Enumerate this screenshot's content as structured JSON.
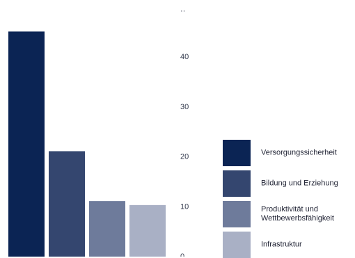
{
  "chart_data": {
    "type": "bar",
    "categories": [
      "Versorgungssicherheit",
      "Bildung und Erziehung",
      "Produktivität und Wettbewerbsfähigkeit",
      "Infrastruktur"
    ],
    "values": [
      45,
      21,
      11,
      10.2
    ],
    "colors": [
      "#0b2454",
      "#34466f",
      "#6e7b9b",
      "#a9b0c5"
    ],
    "ylim": [
      0,
      50
    ],
    "yticks": [
      0,
      10,
      20,
      30,
      40,
      50
    ],
    "ytick_labels": [
      "0",
      "10",
      "20",
      "30",
      "40",
      ""
    ],
    "legend": {
      "placement": "right",
      "items": [
        {
          "label": "Versorgungssicherheit",
          "color": "#0b2454"
        },
        {
          "label": "Bildung und Erziehung",
          "color": "#34466f"
        },
        {
          "label": "Produktivität und\nWettbewerbsfähigkeit",
          "color": "#6e7b9b"
        },
        {
          "label": "Infrastruktur",
          "color": "#a9b0c5"
        }
      ]
    },
    "title": "",
    "xlabel": "",
    "ylabel": "",
    "grid": false
  }
}
